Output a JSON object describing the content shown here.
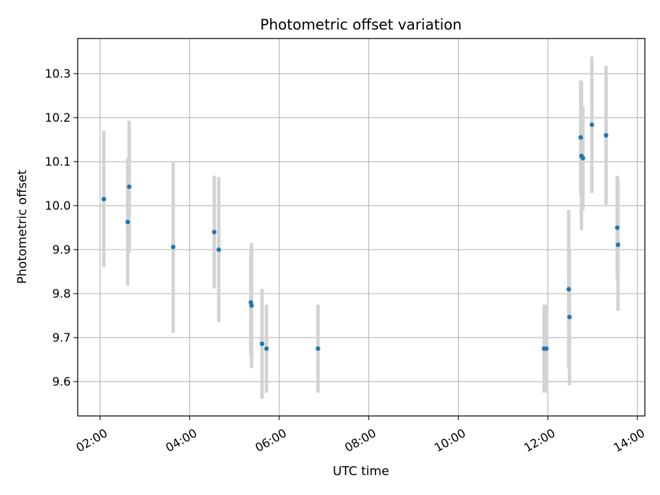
{
  "chart_data": {
    "type": "scatter",
    "title": "Photometric offset variation",
    "xlabel": "UTC time",
    "ylabel": "Photometric offset",
    "x_tick_labels": [
      "02:00",
      "04:00",
      "06:00",
      "08:00",
      "10:00",
      "12:00",
      "14:00"
    ],
    "x_tick_values": [
      "02:00",
      "04:00",
      "06:00",
      "08:00",
      "10:00",
      "12:00",
      "14:00"
    ],
    "y_tick_labels": [
      "9.6",
      "9.7",
      "9.8",
      "9.9",
      "10.0",
      "10.1",
      "10.2",
      "10.3"
    ],
    "y_tick_values": [
      9.6,
      9.7,
      9.8,
      9.9,
      10.0,
      10.1,
      10.2,
      10.3
    ],
    "xlim": [
      "01:30",
      "14:10"
    ],
    "ylim": [
      9.522,
      10.38
    ],
    "grid": true,
    "marker_color": "#1f77b4",
    "errorbar_color": "#d3d3d3",
    "points": [
      {
        "x": "02:05",
        "y": 10.015,
        "err": 0.155
      },
      {
        "x": "02:37",
        "y": 9.963,
        "err": 0.145
      },
      {
        "x": "02:39",
        "y": 10.043,
        "err": 0.15
      },
      {
        "x": "03:38",
        "y": 9.906,
        "err": 0.195
      },
      {
        "x": "04:33",
        "y": 9.94,
        "err": 0.128
      },
      {
        "x": "04:39",
        "y": 9.9,
        "err": 0.165
      },
      {
        "x": "05:22",
        "y": 9.78,
        "err": 0.122
      },
      {
        "x": "05:23",
        "y": 9.773,
        "err": 0.142
      },
      {
        "x": "05:37",
        "y": 9.686,
        "err": 0.125
      },
      {
        "x": "05:43",
        "y": 9.675,
        "err": 0.1
      },
      {
        "x": "06:52",
        "y": 9.675,
        "err": 0.1
      },
      {
        "x": "11:55",
        "y": 9.675,
        "err": 0.1
      },
      {
        "x": "11:58",
        "y": 9.675,
        "err": 0.1
      },
      {
        "x": "12:28",
        "y": 9.81,
        "err": 0.18
      },
      {
        "x": "12:29",
        "y": 9.747,
        "err": 0.155
      },
      {
        "x": "12:44",
        "y": 10.155,
        "err": 0.13
      },
      {
        "x": "12:45",
        "y": 10.113,
        "err": 0.168
      },
      {
        "x": "12:47",
        "y": 10.108,
        "err": 0.118
      },
      {
        "x": "12:59",
        "y": 10.184,
        "err": 0.155
      },
      {
        "x": "13:18",
        "y": 10.16,
        "err": 0.158
      },
      {
        "x": "13:33",
        "y": 9.95,
        "err": 0.118
      },
      {
        "x": "13:34",
        "y": 9.911,
        "err": 0.15
      }
    ]
  }
}
